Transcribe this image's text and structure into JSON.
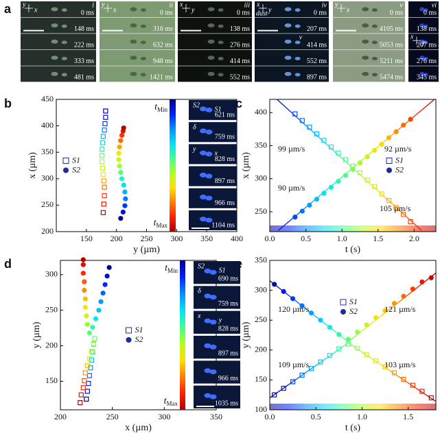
{
  "panel_labels": [
    "a",
    "b",
    "c",
    "d",
    "e"
  ],
  "panel_a": {
    "columns": [
      {
        "numeral": "i",
        "axes": [
          "y",
          "x"
        ],
        "background": "#26302a",
        "times": [
          "0 ms",
          "148 ms",
          "222 ms",
          "333 ms",
          "481 ms"
        ]
      },
      {
        "numeral": "ii",
        "axes": [
          "y",
          "x"
        ],
        "background": "#7d9a72",
        "times": [
          "0 ms",
          "316 ms",
          "632 ms",
          "948 ms",
          "1421 ms"
        ]
      },
      {
        "numeral": "iii",
        "axes": [
          "x",
          "y"
        ],
        "background": "#0d120e",
        "times": [
          "0 ms",
          "138 ms",
          "276 ms",
          "414 ms",
          "552 ms"
        ]
      },
      {
        "numeral": "iv",
        "axes": [
          "x",
          "y"
        ],
        "note": "dust",
        "velocity_label": "v",
        "background": "#0b1622",
        "times": [
          "0 ms",
          "207 ms",
          "414 ms",
          "552 ms",
          "897 ms"
        ]
      },
      {
        "numeral": "v",
        "axes": [
          "y",
          "x"
        ],
        "background": "#8c9c82",
        "times": [
          "0 ms",
          "4105 ms",
          "5053 ms",
          "5211 ms",
          "5474 ms"
        ]
      },
      {
        "numeral": "vi",
        "axes": [
          "x",
          "y"
        ],
        "background": "#070a1c",
        "times": [
          "0 ms",
          "138 ms",
          "207 ms",
          "276 ms",
          "345 ms"
        ]
      }
    ]
  },
  "chart_data": [
    {
      "type": "scatter",
      "x_label": "y (µm)",
      "y_label": "x (µm)",
      "xlim": [
        100,
        400
      ],
      "xticks": [
        150,
        200,
        250,
        300,
        350,
        400
      ],
      "ylim": [
        200,
        450
      ],
      "yticks": [
        200,
        250,
        300,
        350,
        400,
        450
      ],
      "legend": "center left",
      "color_by": "order",
      "colormap": [
        "#00008f",
        "#0020ff",
        "#0090ff",
        "#00e0ff",
        "#40ff90",
        "#b0ff20",
        "#ffe000",
        "#ff8000",
        "#ff2000",
        "#b00000"
      ],
      "colorbar": {
        "top": {
          "symbol": "t",
          "sub": "Min"
        },
        "bottom": {
          "symbol": "t",
          "sub": "Max"
        }
      },
      "series": [
        {
          "name": "S1",
          "marker": "square",
          "color": "#1c2c9c",
          "x": [
            182,
            182,
            181,
            180,
            178,
            177,
            176,
            176,
            176,
            177,
            178,
            179,
            180,
            180,
            179,
            178
          ],
          "y": [
            428,
            416,
            404,
            392,
            380,
            368,
            356,
            344,
            332,
            320,
            308,
            296,
            284,
            268,
            252,
            236
          ]
        },
        {
          "name": "S2",
          "marker": "circle",
          "color": "#1c2c9c",
          "x": [
            207,
            211,
            214,
            215,
            214,
            212,
            209,
            207,
            205,
            204,
            204,
            205,
            207,
            209,
            211,
            212
          ],
          "y": [
            225,
            237,
            249,
            262,
            275,
            288,
            300,
            312,
            324,
            336,
            348,
            360,
            372,
            382,
            390,
            396
          ]
        }
      ],
      "insets": [
        {
          "time": "621 ms",
          "notes": [
            "S2",
            "S1"
          ]
        },
        {
          "time": "759 ms",
          "notes": [
            "δ"
          ]
        },
        {
          "time": "828 ms",
          "notes": [
            "y",
            "x"
          ]
        },
        {
          "time": "897 ms",
          "notes": []
        },
        {
          "time": "966 ms",
          "notes": []
        },
        {
          "time": "1104 ms",
          "notes": []
        }
      ]
    },
    {
      "type": "scatter",
      "x_label": "t (s)",
      "y_label": "x (µm)",
      "xlim": [
        0,
        2.3
      ],
      "xticks": [
        {
          "value": 0,
          "label": "0.0"
        },
        0.5,
        {
          "value": 1,
          "label": "1.0"
        },
        1.5,
        {
          "value": 2,
          "label": "2.0"
        }
      ],
      "ylim": [
        220,
        420
      ],
      "yticks": [
        250,
        300,
        350,
        400
      ],
      "legend": "center right",
      "color_by": "x",
      "colormap": [
        "#00008f",
        "#0020ff",
        "#0090ff",
        "#00e0ff",
        "#40ff90",
        "#b0ff20",
        "#ffe000",
        "#ff8000",
        "#ff2000",
        "#b00000"
      ],
      "series": [
        {
          "name": "S1",
          "marker": "square",
          "color": "#1c2c9c",
          "x": [
            0.35,
            0.45,
            0.55,
            0.65,
            0.75,
            0.85,
            0.95,
            1.05,
            1.15,
            1.25,
            1.35,
            1.45,
            1.55,
            1.65,
            1.75,
            1.85,
            1.95
          ],
          "y": [
            398,
            388,
            378,
            368,
            358,
            348,
            339,
            329,
            319,
            309,
            298,
            288,
            277,
            267,
            256,
            246,
            235
          ],
          "fits": [
            {
              "x": [
                0.1,
                2.1
              ],
              "y": [
                420,
                222
              ]
            }
          ]
        },
        {
          "name": "S2",
          "marker": "circle",
          "color": "#1c2c9c",
          "x": [
            0.35,
            0.45,
            0.55,
            0.65,
            0.75,
            0.85,
            0.95,
            1.05,
            1.15,
            1.25,
            1.35,
            1.45,
            1.55,
            1.65,
            1.75,
            1.85,
            1.95
          ],
          "y": [
            242,
            251,
            260,
            269,
            278,
            287,
            296,
            305,
            314,
            324,
            333,
            343,
            352,
            362,
            371,
            381,
            390
          ],
          "fits": [
            {
              "x": [
                0.12,
                2.28
              ],
              "y": [
                222,
                420
              ]
            }
          ]
        }
      ],
      "annotations": [
        {
          "text": "99 µm/s",
          "color": "#1a2a9a"
        },
        {
          "text": "90 µm/s",
          "color": "#1a2a9a"
        },
        {
          "text": "92 µm/s",
          "color": "#b02a10"
        },
        {
          "text": "105 µm/s",
          "color": "#b02a10"
        }
      ]
    },
    {
      "type": "scatter",
      "x_label": "x (µm)",
      "y_label": "y (µm)",
      "xlim": [
        200,
        350
      ],
      "xticks": [
        200,
        250,
        300,
        350
      ],
      "ylim": [
        110,
        320
      ],
      "yticks": [
        150,
        200,
        250,
        300
      ],
      "legend": "center",
      "color_by": "order",
      "colormap": [
        "#00008f",
        "#0020ff",
        "#0090ff",
        "#00e0ff",
        "#40ff90",
        "#b0ff20",
        "#ffe000",
        "#ff8000",
        "#ff2000",
        "#b00000"
      ],
      "colorbar": {
        "top": {
          "symbol": "t",
          "sub": "Min"
        },
        "bottom": {
          "symbol": "t",
          "sub": "Max"
        }
      },
      "series": [
        {
          "name": "S1",
          "marker": "square",
          "color": "#1c2c9c",
          "x": [
            225,
            226,
            227,
            228,
            229,
            230,
            231,
            232,
            233,
            232,
            230,
            228,
            226,
            224,
            223,
            222,
            220,
            219
          ],
          "y": [
            125,
            136,
            147,
            158,
            169,
            180,
            191,
            202,
            210,
            203,
            192,
            182,
            172,
            162,
            151,
            141,
            131,
            120
          ]
        },
        {
          "name": "S2",
          "marker": "circle",
          "color": "#1c2c9c",
          "x": [
            247,
            245,
            243,
            241,
            239,
            237,
            234,
            231,
            228,
            226,
            225,
            224,
            224,
            223,
            223,
            222,
            222,
            222
          ],
          "y": [
            310,
            298,
            286,
            274,
            262,
            250,
            238,
            226,
            218,
            230,
            242,
            254,
            266,
            278,
            290,
            302,
            314,
            321
          ]
        }
      ],
      "insets": [
        {
          "time": "690 ms",
          "notes": [
            "S2",
            "S1"
          ]
        },
        {
          "time": "759 ms",
          "notes": [
            "δ"
          ]
        },
        {
          "time": "828 ms",
          "notes": [
            "x",
            "y"
          ]
        },
        {
          "time": "897 ms",
          "notes": []
        },
        {
          "time": "966 ms",
          "notes": []
        },
        {
          "time": "1035 ms",
          "notes": []
        }
      ]
    },
    {
      "type": "scatter",
      "x_label": "t (s)",
      "y_label": "y (µm)",
      "xlim": [
        0,
        1.8
      ],
      "xticks": [
        {
          "value": 0,
          "label": "0.0"
        },
        0.5,
        {
          "value": 1,
          "label": "1.0"
        },
        1.5
      ],
      "ylim": [
        100,
        350
      ],
      "yticks": [
        100,
        150,
        200,
        250,
        300,
        350
      ],
      "legend": "upper center",
      "color_by": "x",
      "colormap": [
        "#00008f",
        "#0020ff",
        "#0090ff",
        "#00e0ff",
        "#40ff90",
        "#b0ff20",
        "#ffe000",
        "#ff8000",
        "#ff2000",
        "#b00000"
      ],
      "series": [
        {
          "name": "S1",
          "marker": "square",
          "color": "#1c2c9c",
          "x": [
            0.05,
            0.15,
            0.25,
            0.35,
            0.45,
            0.55,
            0.65,
            0.75,
            0.85,
            0.95,
            1.05,
            1.15,
            1.25,
            1.35,
            1.45,
            1.55,
            1.65,
            1.75
          ],
          "y": [
            125,
            136,
            147,
            158,
            169,
            180,
            191,
            202,
            210,
            203,
            192,
            182,
            172,
            162,
            151,
            141,
            131,
            120
          ],
          "fits": [
            {
              "x": [
                0,
                0.85
              ],
              "y": [
                120,
                212
              ]
            },
            {
              "x": [
                0.85,
                1.8
              ],
              "y": [
                212,
                114
              ]
            }
          ]
        },
        {
          "name": "S2",
          "marker": "circle",
          "color": "#1c2c9c",
          "x": [
            0.05,
            0.15,
            0.25,
            0.35,
            0.45,
            0.55,
            0.65,
            0.75,
            0.85,
            0.95,
            1.05,
            1.15,
            1.25,
            1.35,
            1.45,
            1.55,
            1.65,
            1.75
          ],
          "y": [
            310,
            298,
            286,
            274,
            262,
            250,
            238,
            226,
            218,
            230,
            242,
            254,
            266,
            278,
            290,
            302,
            314,
            321
          ],
          "fits": [
            {
              "x": [
                0,
                0.85
              ],
              "y": [
                316,
                214
              ]
            },
            {
              "x": [
                0.85,
                1.8
              ],
              "y": [
                214,
                329
              ]
            }
          ]
        }
      ],
      "annotations": [
        {
          "text": "120 µm/s",
          "color": "#1a2a9a"
        },
        {
          "text": "109 µm/s",
          "color": "#1a2a9a"
        },
        {
          "text": "121 µm/s",
          "color": "#b02a10"
        },
        {
          "text": "103 µm/s",
          "color": "#b02a10"
        }
      ]
    }
  ]
}
